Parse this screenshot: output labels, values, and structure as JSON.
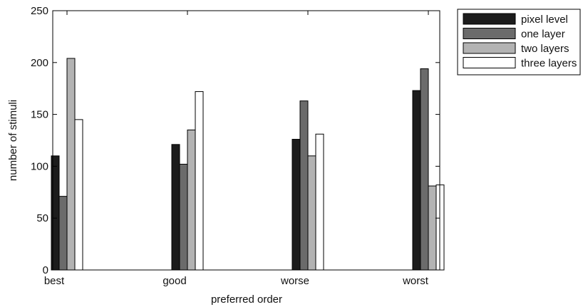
{
  "chart_data": {
    "type": "bar",
    "title": "",
    "xlabel": "preferred order",
    "ylabel": "number of stimuli",
    "categories": [
      "best",
      "good",
      "worse",
      "worst"
    ],
    "ylim": [
      0,
      250
    ],
    "yticks": [
      0,
      50,
      100,
      150,
      200,
      250
    ],
    "grid": false,
    "legend_position": "outside-top-right",
    "series": [
      {
        "name": "pixel level",
        "color": "#1c1c1c",
        "values": [
          110,
          121,
          126,
          173
        ]
      },
      {
        "name": "one layer",
        "color": "#6b6b6b",
        "values": [
          71,
          102,
          163,
          194
        ]
      },
      {
        "name": "two layers",
        "color": "#b3b3b3",
        "values": [
          204,
          135,
          110,
          81
        ]
      },
      {
        "name": "three layers",
        "color": "#ffffff",
        "values": [
          145,
          172,
          131,
          82
        ]
      }
    ]
  }
}
